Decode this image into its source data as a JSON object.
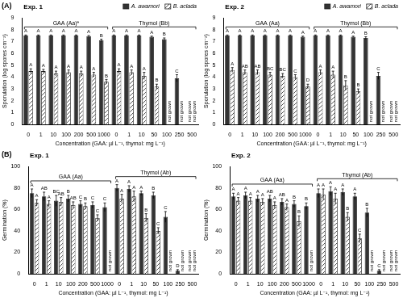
{
  "chart_data": [
    {
      "type": "bar",
      "panel_label": "(A)",
      "title": "Exp. 1",
      "x_label": "Concentration (GAA: µl L⁻¹, thymol: mg L⁻¹)",
      "y_label": "Sporulation (log spores cm⁻²)",
      "categories": [
        "0",
        "1",
        "10",
        "100",
        "200",
        "500",
        "1000",
        "0",
        "1",
        "10",
        "50",
        "100",
        "250",
        "500"
      ],
      "groups": [
        {
          "label": "GAA (Aa)*",
          "size": 7
        },
        {
          "label": "Thymol (Bb)",
          "size": 7
        }
      ],
      "ylim": [
        0,
        9
      ],
      "yticks": [
        0,
        1,
        2,
        3,
        4,
        5,
        6,
        7,
        8,
        9
      ],
      "legend": "upper right",
      "series": [
        {
          "name": "A. awamori",
          "color": "#333333",
          "values": [
            7.5,
            7.5,
            7.5,
            7.5,
            7.5,
            7.45,
            7.1,
            7.5,
            7.5,
            7.5,
            7.4,
            7.2,
            3.9,
            null
          ],
          "errors": [
            0.05,
            0.05,
            0.05,
            0.05,
            0.05,
            0.05,
            0.1,
            0.05,
            0.05,
            0.05,
            0.05,
            0.1,
            0.3,
            null
          ],
          "letters": [
            "A",
            "A",
            "A",
            "A",
            "A",
            "A",
            "B",
            "A",
            "A",
            "A",
            "A",
            "B",
            "C",
            null
          ],
          "annotations": [
            null,
            null,
            null,
            null,
            null,
            null,
            null,
            null,
            null,
            null,
            null,
            null,
            null,
            "not grown"
          ]
        },
        {
          "name": "B. aclada",
          "color": "#ffffff",
          "values": [
            4.5,
            4.5,
            4.3,
            4.4,
            4.3,
            4.2,
            3.6,
            4.5,
            4.4,
            4.1,
            3.2,
            null,
            null,
            null
          ],
          "errors": [
            0.2,
            0.15,
            0.2,
            0.2,
            0.2,
            0.2,
            0.2,
            0.2,
            0.2,
            0.3,
            0.2,
            null,
            null,
            null
          ],
          "letters": [
            "A",
            "A",
            "A",
            "A",
            "A",
            "A",
            "B",
            "A",
            "A",
            "A",
            "B",
            null,
            null,
            null
          ],
          "annotations": [
            null,
            null,
            null,
            null,
            null,
            null,
            null,
            null,
            null,
            null,
            null,
            "not grown",
            "not grown",
            "not grown"
          ]
        }
      ]
    },
    {
      "type": "bar",
      "title": "Exp. 2",
      "x_label": "Concentration (GAA: µl L⁻¹, thymol: mg L⁻¹)",
      "y_label": "Sporulation (log spores cm⁻²)",
      "categories": [
        "0",
        "1",
        "10",
        "100",
        "200",
        "500",
        "1000",
        "0",
        "1",
        "10",
        "50",
        "100",
        "250",
        "500"
      ],
      "groups": [
        {
          "label": "GAA (Aa)",
          "size": 7
        },
        {
          "label": "Thymol (Bb)",
          "size": 7
        }
      ],
      "ylim": [
        0,
        9
      ],
      "yticks": [
        0,
        1,
        2,
        3,
        4,
        5,
        6,
        7,
        8,
        9
      ],
      "legend": "upper right",
      "series": [
        {
          "name": "A. awamori",
          "color": "#333333",
          "values": [
            7.5,
            7.5,
            7.5,
            7.5,
            7.5,
            7.5,
            7.4,
            7.5,
            7.5,
            7.5,
            7.4,
            7.3,
            4.1,
            null
          ],
          "errors": [
            0.05,
            0.05,
            0.05,
            0.05,
            0.05,
            0.05,
            0.05,
            0.05,
            0.05,
            0.05,
            0.05,
            0.1,
            0.3,
            null
          ],
          "letters": [
            "A",
            "A",
            "A",
            "A",
            "A",
            "A",
            "A",
            "A",
            "A",
            "A",
            "A",
            "B",
            "C",
            null
          ],
          "annotations": [
            null,
            null,
            null,
            null,
            null,
            null,
            null,
            null,
            null,
            null,
            null,
            null,
            null,
            "not grown"
          ]
        },
        {
          "name": "B. aclada",
          "color": "#ffffff",
          "values": [
            4.6,
            4.4,
            4.4,
            4.2,
            4.1,
            4.0,
            3.2,
            4.4,
            4.2,
            3.3,
            2.8,
            null,
            null,
            null
          ],
          "errors": [
            0.2,
            0.2,
            0.2,
            0.2,
            0.2,
            0.2,
            0.2,
            0.2,
            0.3,
            0.4,
            0.2,
            null,
            null,
            null
          ],
          "letters": [
            "A",
            "AB",
            "AB",
            "BC",
            "BC",
            "C",
            "D",
            "A",
            "A",
            "B",
            "B",
            null,
            null,
            null
          ],
          "annotations": [
            null,
            null,
            null,
            null,
            null,
            null,
            null,
            null,
            null,
            null,
            null,
            "not grown",
            "not grown",
            "not grown"
          ]
        }
      ]
    },
    {
      "type": "bar",
      "panel_label": "(B)",
      "title": "Exp. 1",
      "x_label": "Concentration (GAA: µl L⁻¹, thymol: mg L⁻¹)",
      "y_label": "Germination (%)",
      "categories": [
        "0",
        "1",
        "10",
        "100",
        "200",
        "500",
        "1000",
        "0",
        "1",
        "10",
        "50",
        "100",
        "250",
        "500"
      ],
      "groups": [
        {
          "label": "GAA (Aa)",
          "size": 7
        },
        {
          "label": "Thymol (Ab)",
          "size": 7
        }
      ],
      "ylim": [
        0,
        100
      ],
      "yticks": [
        0,
        20,
        40,
        60,
        80,
        100
      ],
      "series": [
        {
          "color": "#333333",
          "values": [
            75,
            72,
            68,
            70,
            65,
            64,
            62,
            80,
            79,
            75,
            73,
            53,
            3,
            null
          ],
          "errors": [
            4,
            4,
            5,
            3,
            3,
            3,
            4,
            3,
            3,
            2,
            3,
            5,
            1,
            null
          ],
          "letters": [
            "A",
            "AB",
            "BC",
            "B",
            "C",
            "C",
            "C",
            "A",
            "A",
            "A",
            "B",
            "C",
            "D",
            null
          ],
          "annotations": [
            null,
            null,
            null,
            null,
            null,
            null,
            null,
            null,
            null,
            null,
            null,
            null,
            null,
            "not grown"
          ]
        },
        {
          "color": "#ffffff",
          "values": [
            66,
            65,
            67,
            64,
            63,
            52,
            null,
            70,
            72,
            52,
            40,
            null,
            null,
            null
          ],
          "errors": [
            3,
            3,
            4,
            3,
            3,
            3,
            null,
            4,
            5,
            4,
            3,
            null,
            null,
            null
          ],
          "letters": [
            "A",
            "A",
            "AB",
            "AB",
            "B",
            "C",
            null,
            "A",
            "A",
            "B",
            "C",
            null,
            null,
            null
          ],
          "annotations": [
            null,
            null,
            null,
            null,
            null,
            null,
            "not grown",
            null,
            null,
            null,
            null,
            "not grown",
            "not grown",
            "not grown"
          ]
        }
      ]
    },
    {
      "type": "bar",
      "title": "Exp. 2",
      "x_label": "Concentration (GAA: µl L⁻¹, thymol: mg L⁻¹)",
      "y_label": "Germination (%)",
      "categories": [
        "0",
        "1",
        "10",
        "100",
        "200",
        "500",
        "1000",
        "0",
        "1",
        "10",
        "50",
        "100",
        "250",
        "500"
      ],
      "groups": [
        {
          "label": "GAA (Aa)",
          "size": 7
        },
        {
          "label": "Thymol (Ab)",
          "size": 7
        }
      ],
      "ylim": [
        0,
        100
      ],
      "yticks": [
        0,
        20,
        40,
        60,
        80,
        100
      ],
      "series": [
        {
          "color": "#333333",
          "values": [
            72,
            73,
            70,
            70,
            67,
            65,
            63,
            75,
            77,
            76,
            72,
            57,
            3,
            null
          ],
          "errors": [
            3,
            3,
            3,
            3,
            3,
            3,
            3,
            4,
            4,
            3,
            3,
            4,
            1,
            null
          ],
          "letters": [
            "A",
            "A",
            "A",
            "AB",
            "AB",
            "B",
            "B",
            "A",
            "A",
            "A",
            "A",
            "B",
            "C",
            null
          ],
          "annotations": [
            null,
            null,
            null,
            null,
            null,
            null,
            null,
            null,
            null,
            null,
            null,
            null,
            null,
            "not grown"
          ]
        },
        {
          "color": "#ffffff",
          "values": [
            68,
            68,
            67,
            64,
            62,
            49,
            null,
            74,
            70,
            53,
            33,
            null,
            null,
            null
          ],
          "errors": [
            3,
            3,
            3,
            3,
            3,
            5,
            null,
            5,
            5,
            4,
            4,
            null,
            null,
            null
          ],
          "letters": [
            "A",
            "A",
            "A",
            "A",
            "A",
            "B",
            null,
            "A",
            "A",
            "B",
            "C",
            null,
            null,
            null
          ],
          "annotations": [
            null,
            null,
            null,
            null,
            null,
            null,
            "not grown",
            null,
            null,
            null,
            null,
            "not grown",
            "not grown",
            "not grown"
          ]
        }
      ]
    }
  ]
}
